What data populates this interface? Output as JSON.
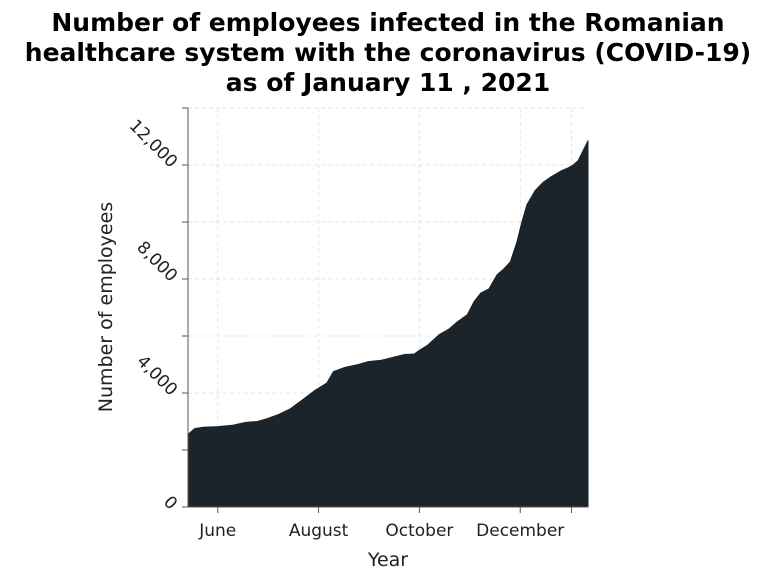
{
  "chart_data": {
    "type": "area",
    "title_lines": [
      "Number of employees infected in the Romanian",
      "healthcare system with the coronavirus (COVID-19)",
      "as of January 11 , 2021"
    ],
    "xlabel": "Year",
    "ylabel": "Number of employees",
    "xlim": [
      "2020-05-14",
      "2021-01-11"
    ],
    "ylim": [
      0,
      14000
    ],
    "x_ticks": [
      {
        "label": "June",
        "date": "2020-06-01"
      },
      {
        "label": "August",
        "date": "2020-08-01"
      },
      {
        "label": "October",
        "date": "2020-10-01"
      },
      {
        "label": "December",
        "date": "2020-12-01"
      },
      {
        "label": "",
        "date": "2021-01-01"
      }
    ],
    "y_ticks": [
      {
        "label": "0",
        "value": 0
      },
      {
        "label": "4,000",
        "value": 4000
      },
      {
        "label": "8,000",
        "value": 8000
      },
      {
        "label": "12,000",
        "value": 12000
      }
    ],
    "y_minor_ticks": [
      2000,
      6000,
      10000,
      14000
    ],
    "grid": true,
    "fill_color": "#1c242b",
    "series": [
      {
        "x": [
          "2020-05-14",
          "2020-05-18",
          "2020-05-23",
          "2020-06-01",
          "2020-06-10",
          "2020-06-18",
          "2020-06-25",
          "2020-07-01",
          "2020-07-08",
          "2020-07-15",
          "2020-07-22",
          "2020-07-30",
          "2020-08-06",
          "2020-08-10",
          "2020-08-17",
          "2020-08-25",
          "2020-08-31",
          "2020-09-08",
          "2020-09-15",
          "2020-09-22",
          "2020-09-28",
          "2020-10-01",
          "2020-10-06",
          "2020-10-13",
          "2020-10-19",
          "2020-10-24",
          "2020-10-30",
          "2020-11-03",
          "2020-11-07",
          "2020-11-12",
          "2020-11-17",
          "2020-11-21",
          "2020-11-25",
          "2020-11-29",
          "2020-12-02",
          "2020-12-05",
          "2020-12-10",
          "2020-12-15",
          "2020-12-20",
          "2020-12-26",
          "2020-12-30",
          "2021-01-02",
          "2021-01-05",
          "2021-01-08",
          "2021-01-11"
        ],
        "values": [
          2550,
          2750,
          2800,
          2820,
          2870,
          2970,
          3000,
          3100,
          3250,
          3450,
          3750,
          4100,
          4350,
          4750,
          4900,
          5000,
          5100,
          5150,
          5250,
          5350,
          5370,
          5500,
          5680,
          6050,
          6250,
          6500,
          6750,
          7200,
          7500,
          7650,
          8150,
          8350,
          8600,
          9300,
          10000,
          10600,
          11100,
          11400,
          11600,
          11800,
          11900,
          12000,
          12150,
          12500,
          12850
        ]
      }
    ]
  }
}
